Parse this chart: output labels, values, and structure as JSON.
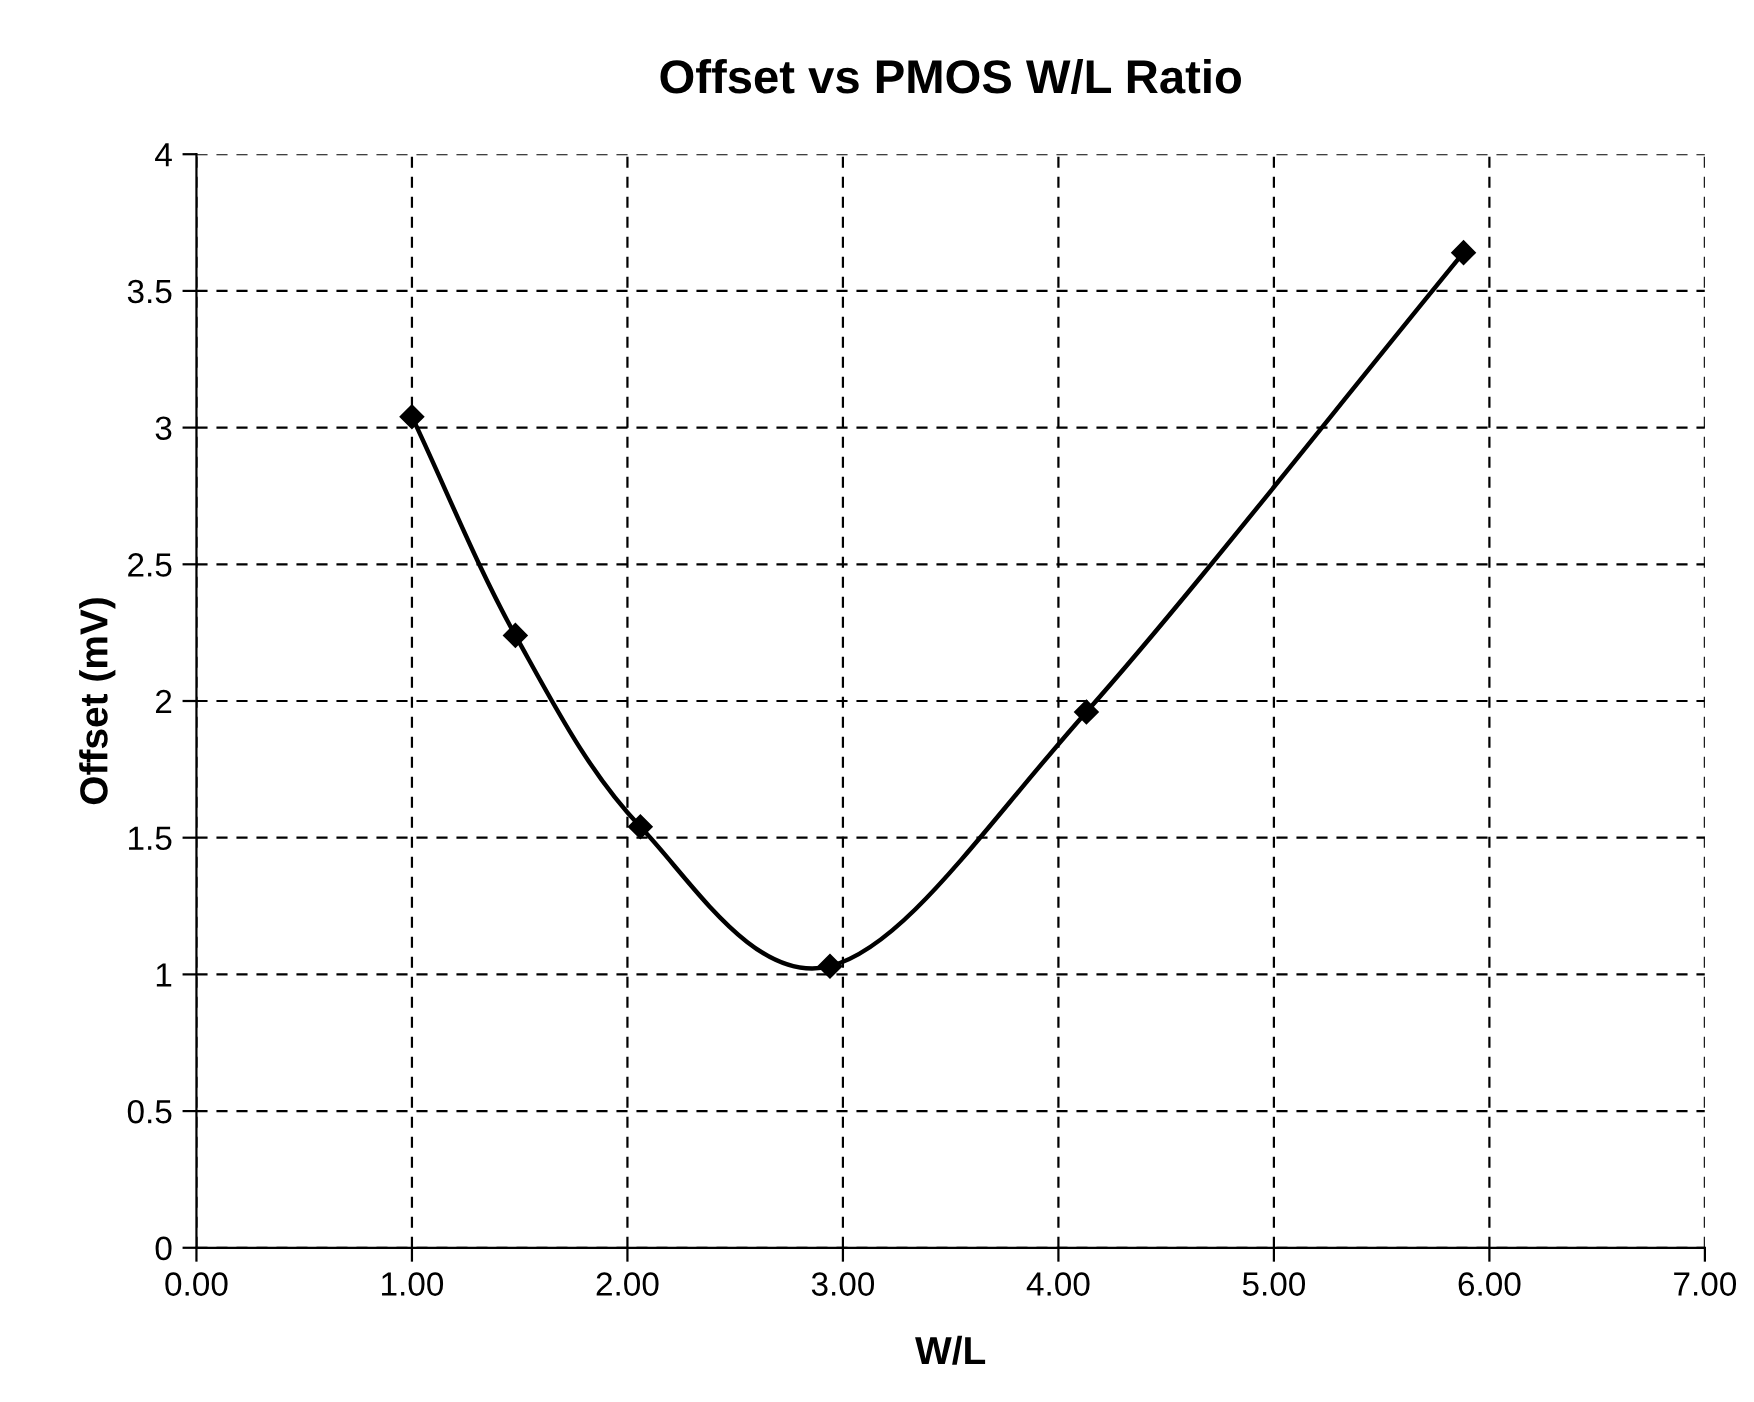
{
  "chart_data": {
    "type": "line",
    "title": "Offset vs PMOS W/L Ratio",
    "xlabel": "W/L",
    "ylabel": "Offset (mV)",
    "x": [
      1.0,
      1.48,
      2.06,
      2.94,
      4.13,
      5.88
    ],
    "series": [
      {
        "color": "#000000",
        "values": [
          3.04,
          2.24,
          1.54,
          1.03,
          1.96,
          3.64
        ]
      }
    ],
    "xlim": [
      0,
      7
    ],
    "ylim": [
      0,
      4
    ],
    "xticks": [
      {
        "value": 0,
        "label": "0.00"
      },
      {
        "value": 1,
        "label": "1.00"
      },
      {
        "value": 2,
        "label": "2.00"
      },
      {
        "value": 3,
        "label": "3.00"
      },
      {
        "value": 4,
        "label": "4.00"
      },
      {
        "value": 5,
        "label": "5.00"
      },
      {
        "value": 6,
        "label": "6.00"
      },
      {
        "value": 7,
        "label": "7.00"
      }
    ],
    "yticks": [
      0,
      0.5,
      1,
      1.5,
      2,
      2.5,
      3,
      3.5,
      4
    ],
    "grid": true,
    "legend": false,
    "marker": "diamond",
    "line_style": "solid"
  }
}
